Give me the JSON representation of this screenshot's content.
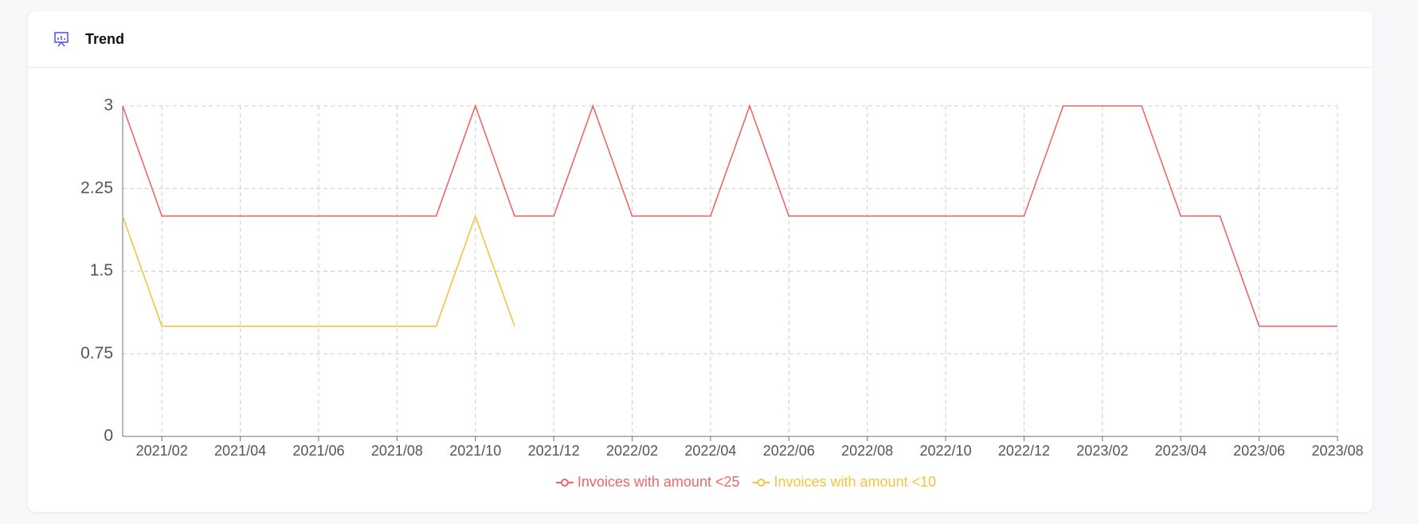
{
  "title": "Trend",
  "chart_data": {
    "type": "line",
    "categories": [
      null,
      "2021/02",
      null,
      "2021/04",
      null,
      "2021/06",
      null,
      "2021/08",
      null,
      "2021/10",
      null,
      "2021/12",
      null,
      "2022/02",
      null,
      "2022/04",
      null,
      "2022/06",
      null,
      "2022/08",
      null,
      "2022/10",
      null,
      "2022/12",
      null,
      "2023/02",
      null,
      "2023/04",
      null,
      "2023/06",
      null,
      "2023/08"
    ],
    "series": [
      {
        "name": "Invoices with amount <25",
        "color": "#ee6666",
        "values": [
          3,
          2,
          2,
          2,
          2,
          2,
          2,
          2,
          2,
          3,
          2,
          2,
          3,
          2,
          2,
          2,
          3,
          2,
          2,
          2,
          2,
          2,
          2,
          2,
          3,
          3,
          3,
          2,
          2,
          1,
          1,
          1
        ]
      },
      {
        "name": "Invoices with amount <10",
        "color": "#f5c242",
        "values": [
          2,
          1,
          1,
          1,
          1,
          1,
          1,
          1,
          1,
          2,
          1,
          null,
          null,
          null,
          null,
          null,
          null,
          null,
          null,
          null,
          null,
          null,
          null,
          null,
          null,
          null,
          null,
          null,
          null,
          null,
          null,
          null
        ]
      }
    ],
    "ylim": [
      0,
      3
    ],
    "yticks": [
      0,
      0.75,
      1.5,
      2.25,
      3
    ],
    "grid": true,
    "legend": "bottom"
  }
}
